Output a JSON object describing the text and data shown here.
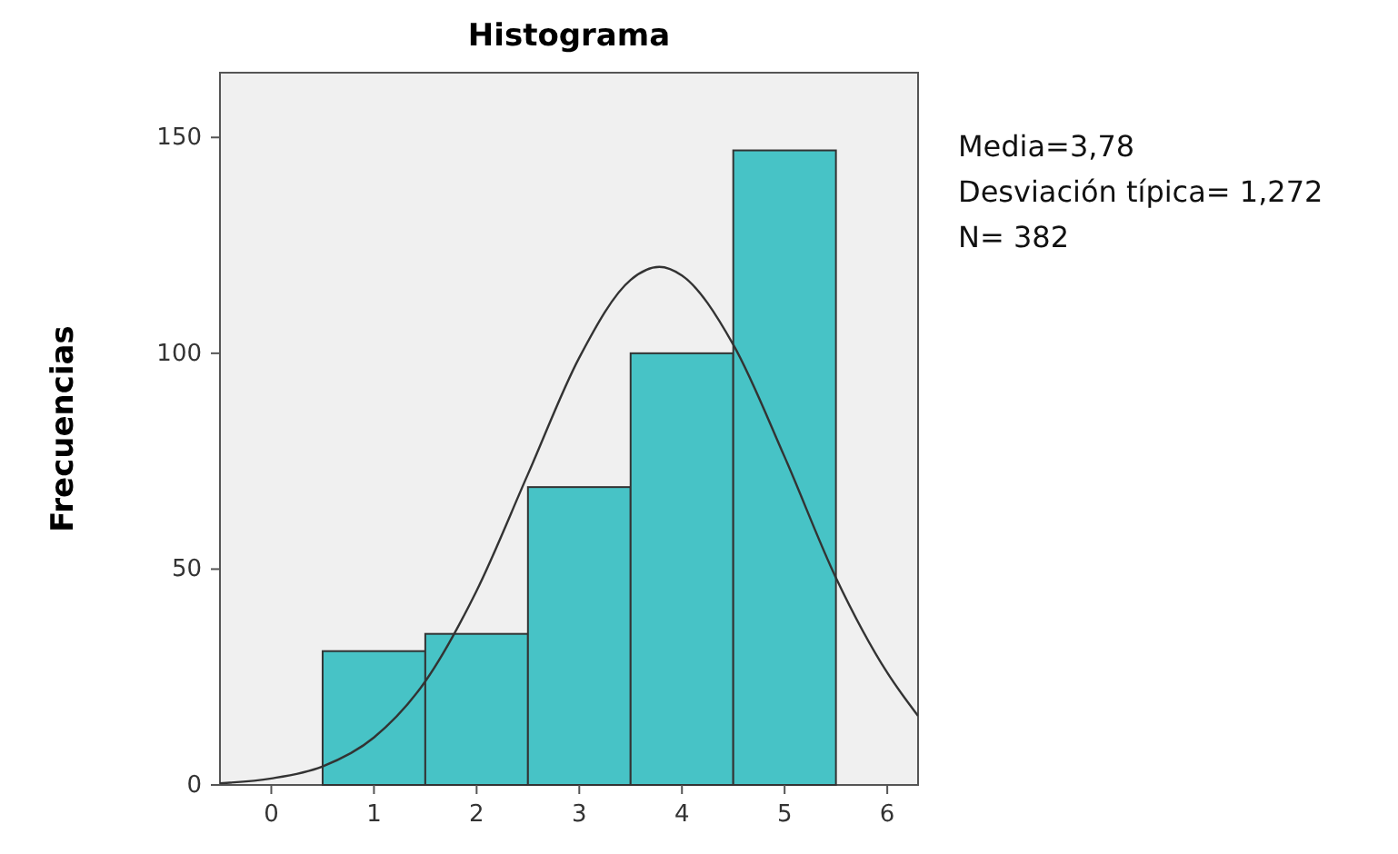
{
  "chart_data": {
    "type": "histogram",
    "title": "Histograma",
    "ylabel": "Frecuencias",
    "bins": [
      0.5,
      1.5,
      2.5,
      3.5,
      4.5,
      5.5
    ],
    "values": [
      31,
      35,
      69,
      100,
      147
    ],
    "color": "#47c3c6",
    "series": [
      {
        "type": "line",
        "color": "#333333",
        "x": [
          -0.5,
          0,
          0.5,
          1,
          1.5,
          2,
          2.5,
          3,
          3.5,
          3.78,
          4,
          4.5,
          5,
          5.5,
          6,
          6.3
        ],
        "values": [
          0.4,
          1.5,
          4.3,
          11,
          24,
          45,
          72,
          99,
          117,
          120,
          118,
          102,
          76,
          48,
          26,
          16
        ]
      }
    ],
    "xlim": [
      -0.5,
      6.3
    ],
    "ylim": [
      0,
      165
    ],
    "xticks": [
      0,
      1,
      2,
      3,
      4,
      5,
      6
    ],
    "yticks": [
      0,
      50,
      100,
      150
    ],
    "annotations": [
      "Media=3,78",
      "Desviación típica= 1,272",
      "N= 382"
    ]
  }
}
